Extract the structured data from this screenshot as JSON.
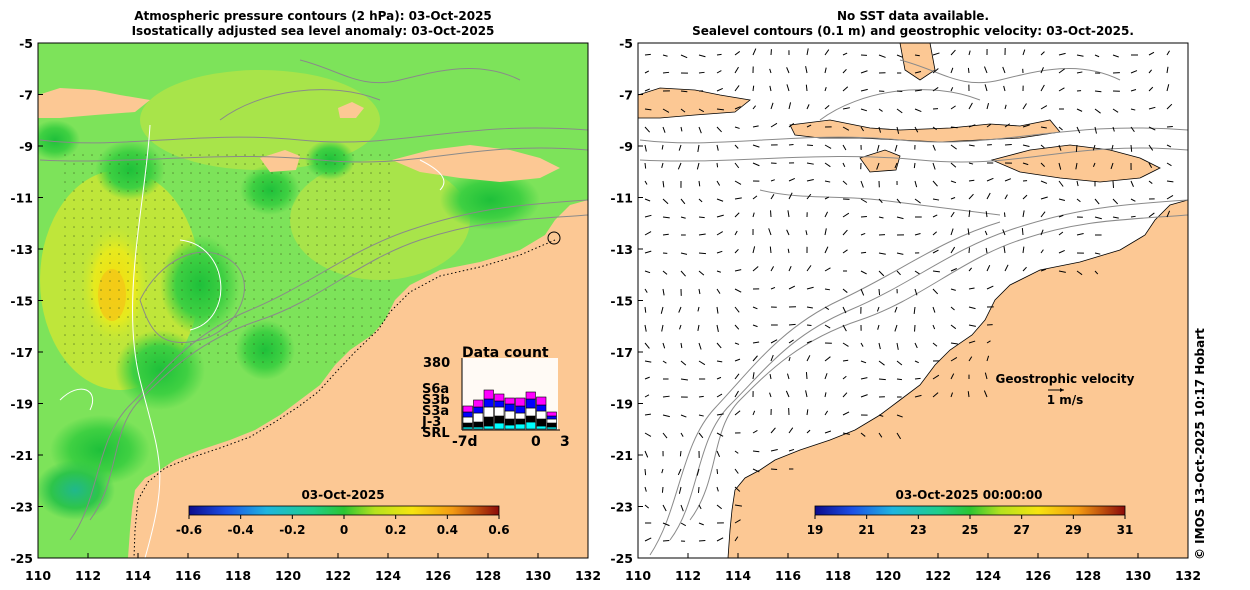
{
  "left_panel": {
    "title_line1": "Atmospheric pressure contours (2 hPa): 03-Oct-2025",
    "title_line2": "Isostatically adjusted sea level anomaly: 03-Oct-2025",
    "colorbar_title": "03-Oct-2025",
    "colorbar_ticks": [
      "-0.6",
      "-0.4",
      "-0.2",
      "0",
      "0.2",
      "0.4",
      "0.6"
    ],
    "data_count": {
      "title": "Data count",
      "max_label": "380",
      "x_start": "-7d",
      "x_mid": "0",
      "x_end": "3",
      "missions": [
        {
          "name": "S6a",
          "color": "#ff00ff"
        },
        {
          "name": "S3b",
          "color": "#0000ff"
        },
        {
          "name": "S3a",
          "color": "#ffffff"
        },
        {
          "name": "J-3",
          "color": "#000000"
        },
        {
          "name": "SRL",
          "color": "#00ffff"
        }
      ]
    }
  },
  "right_panel": {
    "title_line1": "No SST data available.",
    "title_line2": "Sealevel contours (0.1 m) and geostrophic velocity: 03-Oct-2025.",
    "colorbar_title": "03-Oct-2025 00:00:00",
    "colorbar_ticks": [
      "19",
      "21",
      "23",
      "25",
      "27",
      "29",
      "31"
    ],
    "velocity_label": "Geostrophic velocity",
    "velocity_scale": "1 m/s"
  },
  "axes": {
    "lat_ticks": [
      "-5",
      "-7",
      "-9",
      "-11",
      "-13",
      "-15",
      "-17",
      "-19",
      "-21",
      "-23",
      "-25"
    ],
    "lon_ticks": [
      "110",
      "112",
      "114",
      "116",
      "118",
      "120",
      "122",
      "124",
      "126",
      "128",
      "130",
      "132"
    ]
  },
  "credit": "© IMOS 13-Oct-2025 10:17 Hobart",
  "colors": {
    "land": "#fcc894",
    "sea_green": "#7de35a",
    "anomaly_low": "#22c233",
    "anomaly_high": "#f2e10c"
  }
}
